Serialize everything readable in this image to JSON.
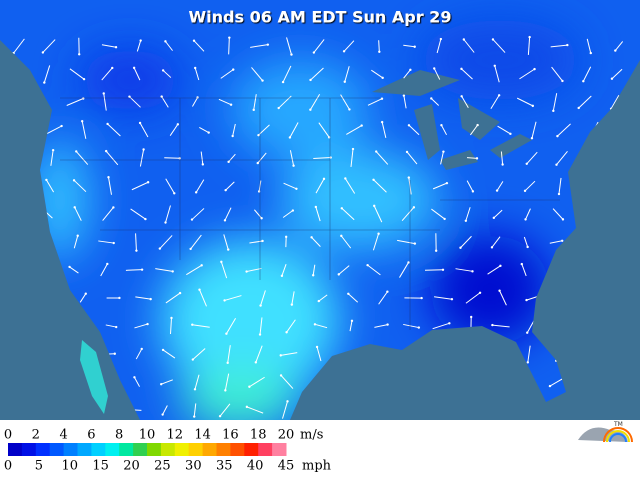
{
  "header": {
    "title": "Winds 06 AM EDT Sun Apr 29"
  },
  "legend": {
    "colors": [
      "#0000c8",
      "#0010e6",
      "#0030ff",
      "#0058ff",
      "#0080ff",
      "#00a8ff",
      "#00d0ff",
      "#00f0f0",
      "#00e8a0",
      "#30d050",
      "#80d800",
      "#c8e800",
      "#f0f000",
      "#ffd000",
      "#ffa800",
      "#ff8000",
      "#ff5000",
      "#ff2000",
      "#ff4060",
      "#ff80a0"
    ],
    "ms_ticks": [
      0,
      2,
      4,
      6,
      8,
      10,
      12,
      14,
      16,
      18,
      20
    ],
    "ms_unit": "m/s",
    "mph_ticks": [
      0,
      5,
      10,
      15,
      20,
      25,
      30,
      35,
      40,
      45
    ],
    "mph_unit": "mph"
  },
  "logo": {
    "mark": "TM"
  }
}
